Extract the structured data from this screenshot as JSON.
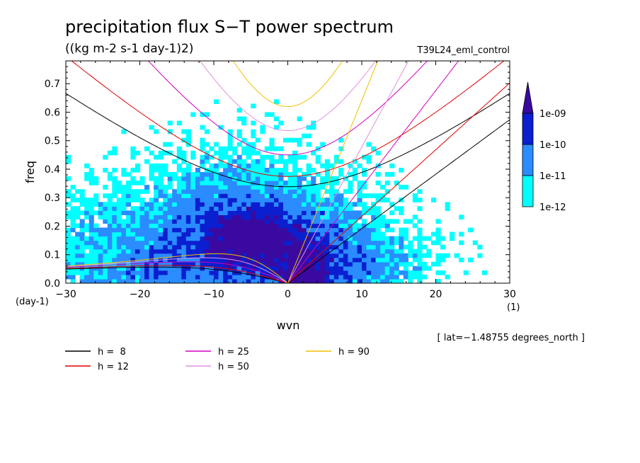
{
  "chart_data": {
    "type": "heatmap",
    "title": "precipitation flux S−T power spectrum",
    "units": "((kg m-2 s-1 day-1)2)",
    "run_label": "T39L24_eml_control",
    "xlabel": "wvn",
    "ylabel": "freq",
    "x_unit": "(1)",
    "y_unit": "(day-1)",
    "xlim": [
      -30,
      30
    ],
    "ylim": [
      0,
      0.78
    ],
    "x_ticks": [
      "−30",
      "−20",
      "−10",
      "0",
      "10",
      "20",
      "30"
    ],
    "x_tick_values": [
      -30,
      -20,
      -10,
      0,
      10,
      20,
      30
    ],
    "y_ticks": [
      "0.0",
      "0.1",
      "0.2",
      "0.3",
      "0.4",
      "0.5",
      "0.6",
      "0.7"
    ],
    "y_tick_values": [
      0,
      0.1,
      0.2,
      0.3,
      0.4,
      0.5,
      0.6,
      0.7
    ],
    "colorbar": {
      "levels": [
        "1e-12",
        "1e-11",
        "1e-10",
        "1e-09"
      ],
      "colors": [
        "#00ffff",
        "#2a8cff",
        "#0a1fd0",
        "#3a0aa0"
      ],
      "extend": "max"
    },
    "footnote": "[ lat=−1.48755 degrees_north ]",
    "series": [
      {
        "name": "h =  8",
        "h": 8,
        "color": "#000000"
      },
      {
        "name": "h = 12",
        "h": 12,
        "color": "#e00000"
      },
      {
        "name": "h = 25",
        "h": 25,
        "color": "#d000c0"
      },
      {
        "name": "h = 50",
        "h": 50,
        "color": "#e090e0"
      },
      {
        "name": "h = 90",
        "h": 90,
        "color": "#f0c000"
      }
    ],
    "legend_placement": "bottom"
  }
}
